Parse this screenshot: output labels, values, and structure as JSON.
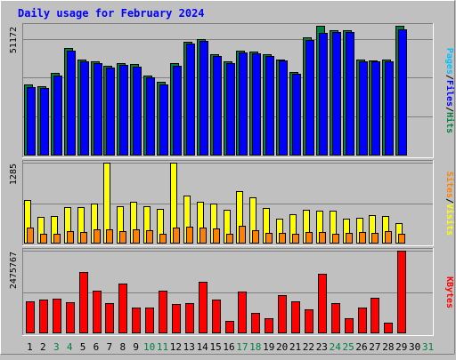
{
  "chart_data": [
    {
      "type": "bar",
      "title": "Daily usage for February 2024",
      "categories": [
        "1",
        "2",
        "3",
        "4",
        "5",
        "6",
        "7",
        "8",
        "9",
        "10",
        "11",
        "12",
        "13",
        "14",
        "15",
        "16",
        "17",
        "18",
        "19",
        "20",
        "21",
        "22",
        "23",
        "24",
        "25",
        "26",
        "27",
        "28",
        "29",
        "30",
        "31"
      ],
      "weekend_days": [
        "3",
        "4",
        "10",
        "11",
        "17",
        "18",
        "24",
        "25",
        "31"
      ],
      "empty_days": [
        "30",
        "31"
      ],
      "y_max_label": "51172",
      "ylim": [
        0,
        51172
      ],
      "y_label_parts": [
        "Pages",
        "/",
        "Files",
        "/",
        "Hits"
      ],
      "series": [
        {
          "name": "Hits",
          "values": [
            28000,
            27200,
            32500,
            42500,
            38000,
            37000,
            35500,
            36500,
            36000,
            31500,
            29000,
            36500,
            45000,
            46000,
            40000,
            37000,
            41500,
            41000,
            39800,
            38000,
            33000,
            46500,
            51172,
            49500,
            49500,
            38000,
            37600,
            37800,
            51000,
            0,
            0
          ]
        },
        {
          "name": "Files",
          "values": [
            27000,
            26500,
            31700,
            41500,
            37000,
            36400,
            34700,
            35700,
            35200,
            30700,
            28200,
            35300,
            44200,
            45200,
            39400,
            36400,
            40800,
            40200,
            39200,
            37400,
            32400,
            45700,
            48500,
            48700,
            48700,
            37300,
            37000,
            37100,
            49800,
            0,
            0
          ]
        },
        {
          "name": "Pages",
          "values": [
            0,
            0,
            0,
            0,
            0,
            0,
            0,
            0,
            0,
            0,
            0,
            0,
            0,
            0,
            0,
            0,
            0,
            0,
            0,
            0,
            0,
            0,
            0,
            0,
            0,
            0,
            0,
            0,
            0,
            0,
            0
          ]
        }
      ],
      "colors": {
        "Hits": "#008040",
        "Files": "#0000ff",
        "Pages": "#00c0ff"
      }
    },
    {
      "type": "bar",
      "y_max_label": "1285",
      "ylim": [
        0,
        1285
      ],
      "y_label_parts": [
        "Sites",
        "/",
        "Visits"
      ],
      "series": [
        {
          "name": "Visits",
          "values": [
            690,
            430,
            440,
            580,
            580,
            640,
            1285,
            590,
            660,
            590,
            550,
            1285,
            760,
            660,
            630,
            540,
            830,
            740,
            570,
            400,
            460,
            540,
            520,
            520,
            390,
            410,
            450,
            440,
            330,
            0,
            0
          ]
        },
        {
          "name": "Sites",
          "values": [
            250,
            160,
            150,
            200,
            180,
            230,
            230,
            200,
            230,
            210,
            150,
            250,
            270,
            250,
            240,
            150,
            280,
            210,
            170,
            170,
            150,
            190,
            190,
            150,
            170,
            180,
            170,
            200,
            160,
            0,
            0
          ]
        }
      ],
      "colors": {
        "Visits": "#ffff00",
        "Sites": "#ff8000"
      }
    },
    {
      "type": "bar",
      "y_max_label": "2475767",
      "ylim": [
        0,
        2475767
      ],
      "y_label_parts": [
        "KBytes"
      ],
      "series": [
        {
          "name": "KBytes",
          "values": [
            950000,
            1000000,
            1050000,
            920000,
            1850000,
            1280000,
            900000,
            1480000,
            780000,
            780000,
            1280000,
            880000,
            900000,
            1550000,
            1010000,
            380000,
            1260000,
            620000,
            440000,
            1140000,
            960000,
            730000,
            1780000,
            900000,
            460000,
            760000,
            1060000,
            330000,
            2475767,
            0,
            0
          ]
        }
      ],
      "colors": {
        "KBytes": "#ff0000"
      }
    }
  ]
}
